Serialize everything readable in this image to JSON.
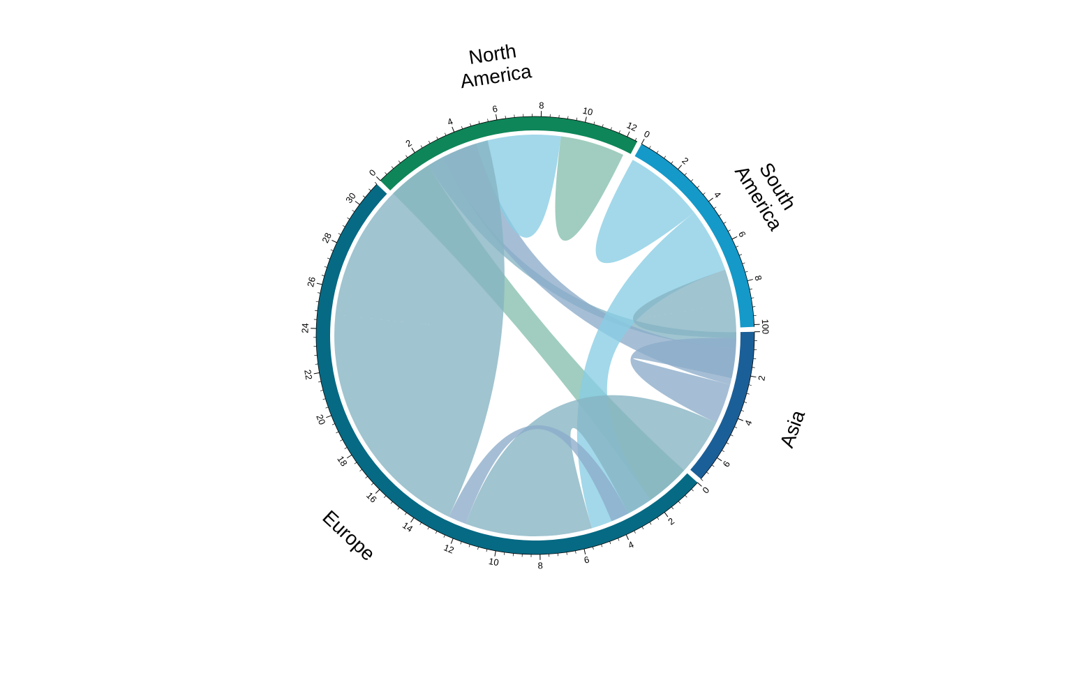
{
  "chart_data": {
    "type": "chord",
    "title": "",
    "sectors": [
      {
        "name": "North America",
        "label_lines": [
          "North",
          "America"
        ],
        "color": "#0e8659",
        "total": 12.5,
        "tick_labels": [
          "0",
          "2",
          "4",
          "6",
          "8",
          "10",
          "12"
        ]
      },
      {
        "name": "South America",
        "label_lines": [
          "South",
          "America"
        ],
        "color": "#1499c9",
        "total": 10.1,
        "tick_labels": [
          "0",
          "2",
          "4",
          "6",
          "8",
          "10"
        ]
      },
      {
        "name": "Asia",
        "label_lines": [
          "Asia"
        ],
        "color": "#1b5f98",
        "total": 7.2,
        "tick_labels": [
          "0",
          "2",
          "4",
          "6"
        ]
      },
      {
        "name": "Europe",
        "label_lines": [
          "Europe"
        ],
        "color": "#066a84",
        "total": 31.2,
        "tick_labels": [
          "0",
          "2",
          "4",
          "6",
          "8",
          "10",
          "12",
          "14",
          "16",
          "18",
          "20",
          "22",
          "24",
          "26",
          "28",
          "30"
        ]
      }
    ],
    "flows": [
      {
        "from": "North America",
        "to": "Europe",
        "value": 2.2,
        "color": "#85bfad"
      },
      {
        "from": "North America",
        "to": "Asia",
        "value": 0.8,
        "color": "#85b3c3"
      },
      {
        "from": "North America",
        "to": "Asia",
        "value": 1.8,
        "color": "#8cacc9"
      },
      {
        "from": "North America",
        "to": "North America",
        "value": 2.1,
        "color": "#88cde4"
      },
      {
        "from": "North America",
        "to": "North America",
        "value": 1.6,
        "color": "#85bfad"
      },
      {
        "from": "South America",
        "to": "South America",
        "value": 2.0,
        "color": "#88cde4"
      },
      {
        "from": "South America",
        "to": "Europe",
        "value": 3.2,
        "color": "#88cde4"
      },
      {
        "from": "South America",
        "to": "South America",
        "value": 1.7,
        "color": "#85b3c3"
      },
      {
        "from": "South America",
        "to": "Asia",
        "value": 2.0,
        "color": "#8cacc9"
      },
      {
        "from": "Asia",
        "to": "Europe",
        "value": 6.3,
        "color": "#85b3c3"
      },
      {
        "from": "Asia",
        "to": "Europe",
        "value": 0.9,
        "color": "#8cacc9"
      },
      {
        "from": "Europe",
        "to": "Europe",
        "value": 12.1,
        "color": "#85b3c3"
      }
    ]
  }
}
